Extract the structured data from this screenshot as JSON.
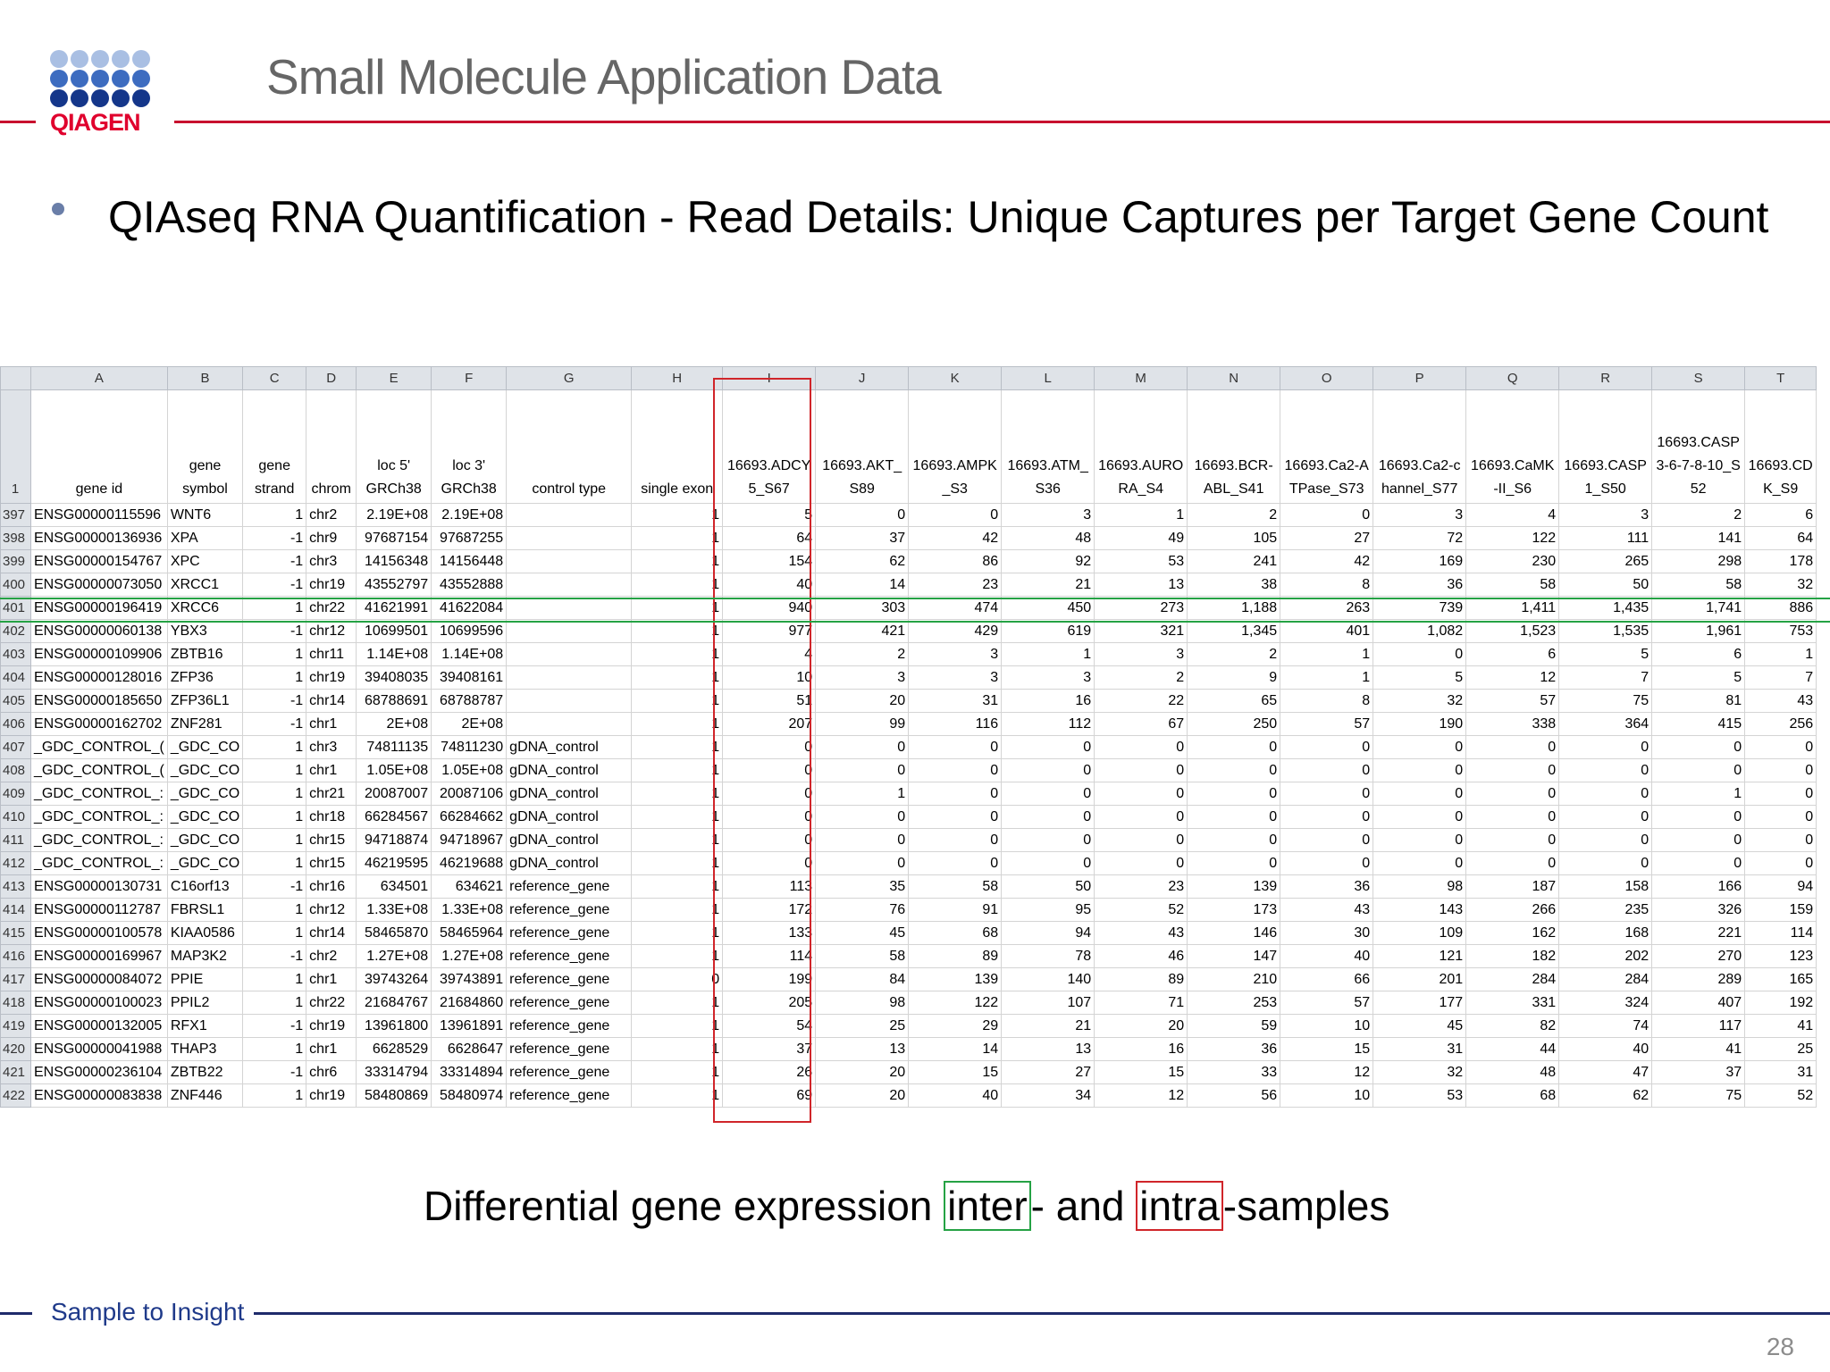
{
  "brand": {
    "logo_text": "QIAGEN",
    "dot_color_light": "#a9bfe3",
    "dot_color_mid": "#3d6cc0",
    "dot_color_dark": "#14368a",
    "accent_red": "#c8102e"
  },
  "slide": {
    "title": "Small Molecule Application Data",
    "bullet": "QIAseq RNA Quantification - Read Details:  Unique Captures per Target Gene Count",
    "caption_pre": "Differential gene expression ",
    "caption_inter": "inter",
    "caption_mid": "- and ",
    "caption_intra": "intra",
    "caption_post": "-samples",
    "footer": "Sample to Insight",
    "page_number": "28"
  },
  "sheet": {
    "column_letters": [
      "A",
      "B",
      "C",
      "D",
      "E",
      "F",
      "G",
      "H",
      "I",
      "J",
      "K",
      "L",
      "M",
      "N",
      "O",
      "P",
      "Q",
      "R",
      "S",
      "T"
    ],
    "header_row_number": "1",
    "headers": [
      "gene id",
      "gene symbol",
      "gene strand",
      "chrom",
      "loc 5' GRCh38",
      "loc 3' GRCh38",
      "control type",
      "single exon",
      "16693.ADCY5_S67",
      "16693.AKT_S89",
      "16693.AMPK_S3",
      "16693.ATM_S36",
      "16693.AURORA_S4",
      "16693.BCR-ABL_S41",
      "16693.Ca2-ATPase_S73",
      "16693.Ca2-channel_S77",
      "16693.CaMK-II_S6",
      "16693.CASP1_S50",
      "16693.CASP3-6-7-8-10_S52",
      "16693.CDK_S9"
    ],
    "rows": [
      [
        "397",
        "ENSG00000115596",
        "WNT6",
        "1",
        "chr2",
        "2.19E+08",
        "2.19E+08",
        "",
        "1",
        "5",
        "0",
        "0",
        "3",
        "1",
        "2",
        "0",
        "3",
        "4",
        "3",
        "2",
        "6"
      ],
      [
        "398",
        "ENSG00000136936",
        "XPA",
        "-1",
        "chr9",
        "97687154",
        "97687255",
        "",
        "1",
        "64",
        "37",
        "42",
        "48",
        "49",
        "105",
        "27",
        "72",
        "122",
        "111",
        "141",
        "64"
      ],
      [
        "399",
        "ENSG00000154767",
        "XPC",
        "-1",
        "chr3",
        "14156348",
        "14156448",
        "",
        "1",
        "154",
        "62",
        "86",
        "92",
        "53",
        "241",
        "42",
        "169",
        "230",
        "265",
        "298",
        "178"
      ],
      [
        "400",
        "ENSG00000073050",
        "XRCC1",
        "-1",
        "chr19",
        "43552797",
        "43552888",
        "",
        "1",
        "40",
        "14",
        "23",
        "21",
        "13",
        "38",
        "8",
        "36",
        "58",
        "50",
        "58",
        "32"
      ],
      [
        "401",
        "ENSG00000196419",
        "XRCC6",
        "1",
        "chr22",
        "41621991",
        "41622084",
        "",
        "1",
        "940",
        "303",
        "474",
        "450",
        "273",
        "1,188",
        "263",
        "739",
        "1,411",
        "1,435",
        "1,741",
        "886"
      ],
      [
        "402",
        "ENSG00000060138",
        "YBX3",
        "-1",
        "chr12",
        "10699501",
        "10699596",
        "",
        "1",
        "977",
        "421",
        "429",
        "619",
        "321",
        "1,345",
        "401",
        "1,082",
        "1,523",
        "1,535",
        "1,961",
        "753"
      ],
      [
        "403",
        "ENSG00000109906",
        "ZBTB16",
        "1",
        "chr11",
        "1.14E+08",
        "1.14E+08",
        "",
        "1",
        "4",
        "2",
        "3",
        "1",
        "3",
        "2",
        "1",
        "0",
        "6",
        "5",
        "6",
        "1"
      ],
      [
        "404",
        "ENSG00000128016",
        "ZFP36",
        "1",
        "chr19",
        "39408035",
        "39408161",
        "",
        "1",
        "10",
        "3",
        "3",
        "3",
        "2",
        "9",
        "1",
        "5",
        "12",
        "7",
        "5",
        "7"
      ],
      [
        "405",
        "ENSG00000185650",
        "ZFP36L1",
        "-1",
        "chr14",
        "68788691",
        "68788787",
        "",
        "1",
        "51",
        "20",
        "31",
        "16",
        "22",
        "65",
        "8",
        "32",
        "57",
        "75",
        "81",
        "43"
      ],
      [
        "406",
        "ENSG00000162702",
        "ZNF281",
        "-1",
        "chr1",
        "2E+08",
        "2E+08",
        "",
        "1",
        "207",
        "99",
        "116",
        "112",
        "67",
        "250",
        "57",
        "190",
        "338",
        "364",
        "415",
        "256"
      ],
      [
        "407",
        "_GDC_CONTROL_(",
        "_GDC_CO",
        "1",
        "chr3",
        "74811135",
        "74811230",
        "gDNA_control",
        "1",
        "0",
        "0",
        "0",
        "0",
        "0",
        "0",
        "0",
        "0",
        "0",
        "0",
        "0",
        "0"
      ],
      [
        "408",
        "_GDC_CONTROL_(",
        "_GDC_CO",
        "1",
        "chr1",
        "1.05E+08",
        "1.05E+08",
        "gDNA_control",
        "1",
        "0",
        "0",
        "0",
        "0",
        "0",
        "0",
        "0",
        "0",
        "0",
        "0",
        "0",
        "0"
      ],
      [
        "409",
        "_GDC_CONTROL_:",
        "_GDC_CO",
        "1",
        "chr21",
        "20087007",
        "20087106",
        "gDNA_control",
        "1",
        "0",
        "1",
        "0",
        "0",
        "0",
        "0",
        "0",
        "0",
        "0",
        "0",
        "1",
        "0"
      ],
      [
        "410",
        "_GDC_CONTROL_:",
        "_GDC_CO",
        "1",
        "chr18",
        "66284567",
        "66284662",
        "gDNA_control",
        "1",
        "0",
        "0",
        "0",
        "0",
        "0",
        "0",
        "0",
        "0",
        "0",
        "0",
        "0",
        "0"
      ],
      [
        "411",
        "_GDC_CONTROL_:",
        "_GDC_CO",
        "1",
        "chr15",
        "94718874",
        "94718967",
        "gDNA_control",
        "1",
        "0",
        "0",
        "0",
        "0",
        "0",
        "0",
        "0",
        "0",
        "0",
        "0",
        "0",
        "0"
      ],
      [
        "412",
        "_GDC_CONTROL_:",
        "_GDC_CO",
        "1",
        "chr15",
        "46219595",
        "46219688",
        "gDNA_control",
        "1",
        "0",
        "0",
        "0",
        "0",
        "0",
        "0",
        "0",
        "0",
        "0",
        "0",
        "0",
        "0"
      ],
      [
        "413",
        "ENSG00000130731",
        "C16orf13",
        "-1",
        "chr16",
        "634501",
        "634621",
        "reference_gene",
        "1",
        "113",
        "35",
        "58",
        "50",
        "23",
        "139",
        "36",
        "98",
        "187",
        "158",
        "166",
        "94"
      ],
      [
        "414",
        "ENSG00000112787",
        "FBRSL1",
        "1",
        "chr12",
        "1.33E+08",
        "1.33E+08",
        "reference_gene",
        "1",
        "172",
        "76",
        "91",
        "95",
        "52",
        "173",
        "43",
        "143",
        "266",
        "235",
        "326",
        "159"
      ],
      [
        "415",
        "ENSG00000100578",
        "KIAA0586",
        "1",
        "chr14",
        "58465870",
        "58465964",
        "reference_gene",
        "1",
        "133",
        "45",
        "68",
        "94",
        "43",
        "146",
        "30",
        "109",
        "162",
        "168",
        "221",
        "114"
      ],
      [
        "416",
        "ENSG00000169967",
        "MAP3K2",
        "-1",
        "chr2",
        "1.27E+08",
        "1.27E+08",
        "reference_gene",
        "1",
        "114",
        "58",
        "89",
        "78",
        "46",
        "147",
        "40",
        "121",
        "182",
        "202",
        "270",
        "123"
      ],
      [
        "417",
        "ENSG00000084072",
        "PPIE",
        "1",
        "chr1",
        "39743264",
        "39743891",
        "reference_gene",
        "0",
        "199",
        "84",
        "139",
        "140",
        "89",
        "210",
        "66",
        "201",
        "284",
        "284",
        "289",
        "165"
      ],
      [
        "418",
        "ENSG00000100023",
        "PPIL2",
        "1",
        "chr22",
        "21684767",
        "21684860",
        "reference_gene",
        "1",
        "205",
        "98",
        "122",
        "107",
        "71",
        "253",
        "57",
        "177",
        "331",
        "324",
        "407",
        "192"
      ],
      [
        "419",
        "ENSG00000132005",
        "RFX1",
        "-1",
        "chr19",
        "13961800",
        "13961891",
        "reference_gene",
        "1",
        "54",
        "25",
        "29",
        "21",
        "20",
        "59",
        "10",
        "45",
        "82",
        "74",
        "117",
        "41"
      ],
      [
        "420",
        "ENSG00000041988",
        "THAP3",
        "1",
        "chr1",
        "6628529",
        "6628647",
        "reference_gene",
        "1",
        "37",
        "13",
        "14",
        "13",
        "16",
        "36",
        "15",
        "31",
        "44",
        "40",
        "41",
        "25"
      ],
      [
        "421",
        "ENSG00000236104",
        "ZBTB22",
        "-1",
        "chr6",
        "33314794",
        "33314894",
        "reference_gene",
        "1",
        "26",
        "20",
        "15",
        "27",
        "15",
        "33",
        "12",
        "32",
        "48",
        "47",
        "37",
        "31"
      ],
      [
        "422",
        "ENSG00000083838",
        "ZNF446",
        "1",
        "chr19",
        "58480869",
        "58480974",
        "reference_gene",
        "1",
        "69",
        "20",
        "40",
        "34",
        "12",
        "56",
        "10",
        "53",
        "68",
        "62",
        "75",
        "52"
      ]
    ]
  }
}
